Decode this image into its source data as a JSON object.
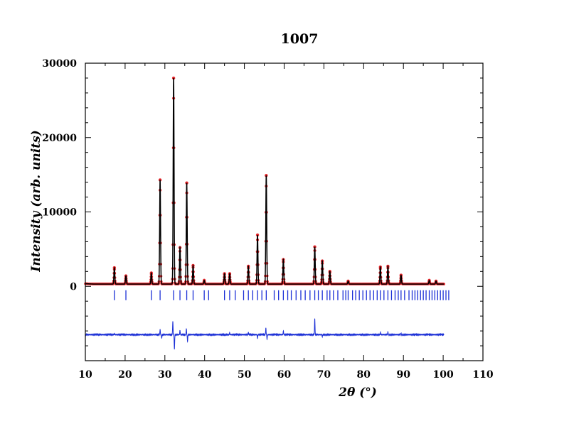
{
  "chart_data": {
    "type": "line",
    "title": "1007",
    "xlabel": "2θ (°)",
    "ylabel": "Intensity (arb. units)",
    "xlim": [
      10,
      110
    ],
    "ylim": [
      -10000,
      30000
    ],
    "x_ticks": [
      10,
      20,
      30,
      40,
      50,
      60,
      70,
      80,
      90,
      100,
      110
    ],
    "y_ticks": [
      0,
      10000,
      20000,
      30000
    ],
    "grid": false,
    "legend": "none",
    "background_level": 300,
    "peaks": [
      {
        "x": 17.3,
        "y": 2500
      },
      {
        "x": 20.2,
        "y": 1400
      },
      {
        "x": 26.6,
        "y": 1800
      },
      {
        "x": 28.8,
        "y": 14300
      },
      {
        "x": 32.2,
        "y": 28000
      },
      {
        "x": 33.8,
        "y": 5200
      },
      {
        "x": 35.5,
        "y": 13900
      },
      {
        "x": 37.1,
        "y": 2800
      },
      {
        "x": 39.9,
        "y": 800
      },
      {
        "x": 45.0,
        "y": 1700
      },
      {
        "x": 46.3,
        "y": 1700
      },
      {
        "x": 51.0,
        "y": 2700
      },
      {
        "x": 53.3,
        "y": 6900
      },
      {
        "x": 55.5,
        "y": 14900
      },
      {
        "x": 59.8,
        "y": 3600
      },
      {
        "x": 67.7,
        "y": 5300
      },
      {
        "x": 69.6,
        "y": 3400
      },
      {
        "x": 71.5,
        "y": 2000
      },
      {
        "x": 76.1,
        "y": 700
      },
      {
        "x": 84.2,
        "y": 2600
      },
      {
        "x": 86.1,
        "y": 2700
      },
      {
        "x": 89.4,
        "y": 1500
      },
      {
        "x": 96.5,
        "y": 800
      },
      {
        "x": 98.2,
        "y": 700
      }
    ],
    "bragg_positions": [
      17.3,
      20.2,
      26.6,
      28.8,
      32.2,
      33.8,
      35.5,
      37.1,
      39.9,
      41.0,
      45.0,
      46.3,
      47.7,
      49.8,
      51.0,
      52.1,
      53.3,
      54.4,
      55.5,
      57.5,
      58.6,
      59.8,
      60.9,
      61.8,
      63.0,
      64.2,
      65.3,
      66.5,
      67.7,
      68.6,
      69.6,
      70.8,
      71.5,
      72.4,
      73.5,
      74.8,
      75.5,
      76.1,
      77.2,
      78.0,
      78.9,
      79.8,
      80.7,
      81.6,
      82.5,
      83.4,
      84.2,
      85.1,
      86.1,
      87.0,
      87.9,
      88.7,
      89.4,
      90.3,
      91.4,
      92.2,
      92.9,
      93.6,
      94.3,
      95.0,
      95.7,
      96.5,
      97.2,
      97.9,
      98.6,
      99.3,
      100.0,
      100.7,
      101.4
    ],
    "bragg_offset": -1200,
    "difference_baseline": -6500,
    "difference_features": [
      {
        "x": 17.3,
        "dy": 150
      },
      {
        "x": 28.8,
        "dy": 700
      },
      {
        "x": 29.2,
        "dy": -500
      },
      {
        "x": 32.0,
        "dy": 1800
      },
      {
        "x": 32.4,
        "dy": -2000
      },
      {
        "x": 33.8,
        "dy": 600
      },
      {
        "x": 35.4,
        "dy": 800
      },
      {
        "x": 35.7,
        "dy": -900
      },
      {
        "x": 46.3,
        "dy": 250
      },
      {
        "x": 51.0,
        "dy": 300
      },
      {
        "x": 53.3,
        "dy": -500
      },
      {
        "x": 55.4,
        "dy": 900
      },
      {
        "x": 55.7,
        "dy": -600
      },
      {
        "x": 59.8,
        "dy": 500
      },
      {
        "x": 67.7,
        "dy": 2200
      },
      {
        "x": 69.6,
        "dy": -300
      },
      {
        "x": 84.2,
        "dy": 300
      },
      {
        "x": 86.1,
        "dy": 400
      },
      {
        "x": 89.4,
        "dy": 200
      }
    ],
    "colors": {
      "observed": "#e8262b",
      "calculated": "#000000",
      "bragg_marks": "#1b2fd6",
      "difference": "#1b2fd6"
    },
    "series": [
      {
        "style": "red points",
        "role": "observed"
      },
      {
        "style": "black line",
        "role": "calculated"
      },
      {
        "style": "blue tick marks",
        "role": "Bragg reflections"
      },
      {
        "style": "blue line",
        "role": "difference"
      }
    ]
  }
}
